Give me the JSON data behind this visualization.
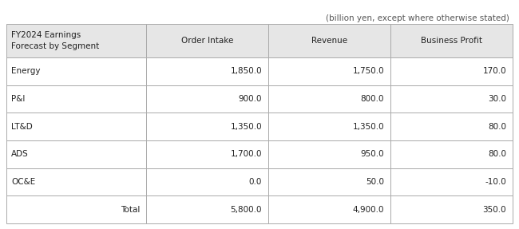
{
  "caption": "(billion yen, except where otherwise stated)",
  "header_col": "FY2024 Earnings\nForecast by Segment",
  "columns": [
    "Order Intake",
    "Revenue",
    "Business Profit"
  ],
  "rows": [
    {
      "label": "Energy",
      "values": [
        "1,850.0",
        "1,750.0",
        "170.0"
      ]
    },
    {
      "label": "P&I",
      "values": [
        "900.0",
        "800.0",
        "30.0"
      ]
    },
    {
      "label": "LT&D",
      "values": [
        "1,350.0",
        "1,350.0",
        "80.0"
      ]
    },
    {
      "label": "ADS",
      "values": [
        "1,700.0",
        "950.0",
        "80.0"
      ]
    },
    {
      "label": "OC&E",
      "values": [
        "0.0",
        "50.0",
        "-10.0"
      ]
    }
  ],
  "total_row": {
    "label": "Total",
    "values": [
      "5,800.0",
      "4,900.0",
      "350.0"
    ]
  },
  "header_bg": "#e6e6e6",
  "row_bg": "#ffffff",
  "border_color": "#aaaaaa",
  "text_color": "#222222",
  "caption_color": "#555555",
  "font_size": 7.5,
  "header_font_size": 7.5,
  "caption_font_size": 7.5
}
